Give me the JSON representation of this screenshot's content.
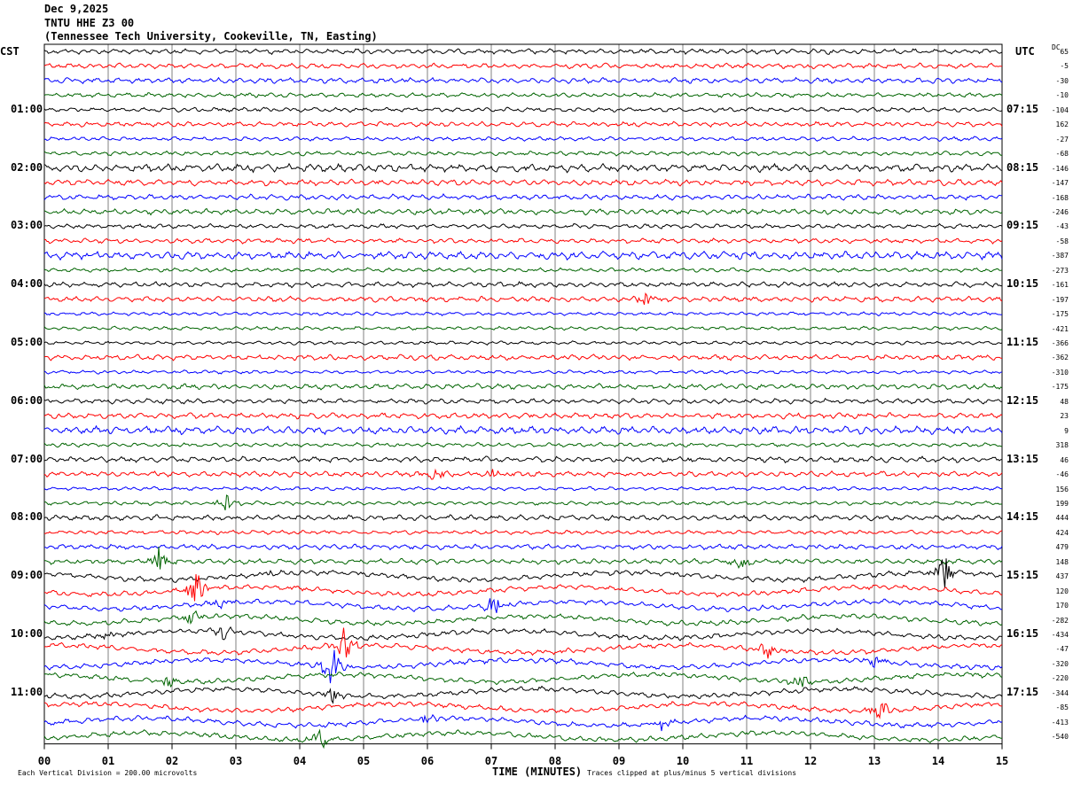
{
  "header": {
    "date": "Dec 9,2025",
    "station": "TNTU HHE Z3 00",
    "location": "(Tennessee Tech University, Cookeville, TN, Easting)"
  },
  "axes": {
    "left_zone": "CST",
    "right_zone": "UTC",
    "dc_header": "DC",
    "xlabel": "TIME (MINUTES)"
  },
  "footer": {
    "scale_note": "Each Vertical Division =  200.00 microvolts",
    "clip_note": "Traces clipped at plus/minus 5 vertical divisions"
  },
  "colors": {
    "trace_cycle": [
      "#000000",
      "#ff0000",
      "#0000ff",
      "#006400"
    ],
    "grid": "#808080"
  },
  "chart_data": {
    "type": "line",
    "title": "TNTU HHE Z3 00",
    "xlabel": "TIME (MINUTES)",
    "x_ticks": [
      "00",
      "01",
      "02",
      "03",
      "04",
      "05",
      "06",
      "07",
      "08",
      "09",
      "10",
      "11",
      "12",
      "13",
      "14",
      "15"
    ],
    "xlim": [
      0,
      15
    ],
    "rows_per_hour": 4,
    "trace_count": 48,
    "left_time_labels": [
      "01:00",
      "02:00",
      "03:00",
      "04:00",
      "05:00",
      "06:00",
      "07:00",
      "08:00",
      "09:00",
      "10:00",
      "11:00"
    ],
    "right_time_labels": [
      "07:15",
      "08:15",
      "09:15",
      "10:15",
      "11:15",
      "12:15",
      "13:15",
      "14:15",
      "15:15",
      "16:15",
      "17:15"
    ],
    "dc_offsets": [
      "65",
      "-5",
      "-30",
      "-10",
      "-104",
      "162",
      "-27",
      "-68",
      "-146",
      "-147",
      "-168",
      "-246",
      "-43",
      "-58",
      "-387",
      "-273",
      "-161",
      "-197",
      "-175",
      "-421",
      "-366",
      "-362",
      "-310",
      "-175",
      "48",
      "23",
      "9",
      "318",
      "46",
      "-46",
      "156",
      "199",
      "444",
      "424",
      "479",
      "148",
      "437",
      "120",
      "170",
      "-282",
      "-434",
      "-47",
      "-320",
      "-220",
      "-344",
      "-85",
      "-413",
      "-540"
    ],
    "events": [
      {
        "trace": 17,
        "minute": 9.4,
        "size": 1.2
      },
      {
        "trace": 29,
        "minute": 6.1,
        "size": 1.6
      },
      {
        "trace": 29,
        "minute": 7.05,
        "size": 1.0
      },
      {
        "trace": 31,
        "minute": 2.85,
        "size": 1.4
      },
      {
        "trace": 35,
        "minute": 1.8,
        "size": 2.2
      },
      {
        "trace": 35,
        "minute": 10.9,
        "size": 1.6
      },
      {
        "trace": 36,
        "minute": 14.1,
        "size": 3.2
      },
      {
        "trace": 36,
        "minute": 3.5,
        "size": 0.8
      },
      {
        "trace": 37,
        "minute": 2.4,
        "size": 3.6
      },
      {
        "trace": 38,
        "minute": 7.05,
        "size": 2.4
      },
      {
        "trace": 38,
        "minute": 2.75,
        "size": 0.9
      },
      {
        "trace": 39,
        "minute": 2.3,
        "size": 1.2
      },
      {
        "trace": 40,
        "minute": 2.8,
        "size": 1.3
      },
      {
        "trace": 40,
        "minute": 1.0,
        "size": 0.8
      },
      {
        "trace": 41,
        "minute": 4.7,
        "size": 3.2
      },
      {
        "trace": 41,
        "minute": 11.35,
        "size": 2.2
      },
      {
        "trace": 42,
        "minute": 4.5,
        "size": 4.4
      },
      {
        "trace": 42,
        "minute": 13.0,
        "size": 1.1
      },
      {
        "trace": 43,
        "minute": 1.95,
        "size": 1.4
      },
      {
        "trace": 43,
        "minute": 11.85,
        "size": 1.4
      },
      {
        "trace": 44,
        "minute": 4.55,
        "size": 1.6
      },
      {
        "trace": 45,
        "minute": 13.1,
        "size": 1.6
      },
      {
        "trace": 46,
        "minute": 6.0,
        "size": 1.1
      },
      {
        "trace": 46,
        "minute": 9.7,
        "size": 1.4
      },
      {
        "trace": 47,
        "minute": 4.3,
        "size": 2.6
      }
    ]
  }
}
